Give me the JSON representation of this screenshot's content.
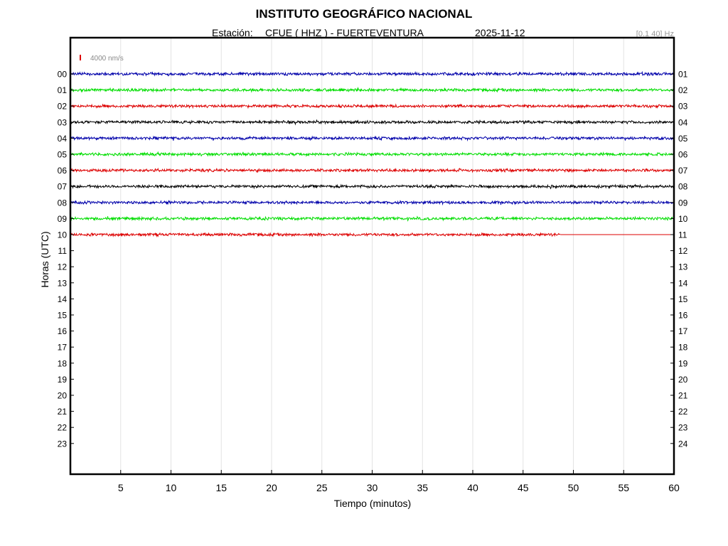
{
  "header": {
    "title": "INSTITUTO GEOGRÁFICO NACIONAL",
    "station_label": "Estación:",
    "station": "CFUE ( HHZ ) - FUERTEVENTURA",
    "date": "2025-11-12",
    "filter": "[0.1 40] Hz"
  },
  "chart_data": {
    "type": "line",
    "title": "INSTITUTO GEOGRÁFICO NACIONAL",
    "xlabel": "Tiempo (minutos)",
    "ylabel": "Horas (UTC)",
    "xlim": [
      0,
      60
    ],
    "x_ticks": [
      "5",
      "10",
      "15",
      "20",
      "25",
      "30",
      "35",
      "40",
      "45",
      "50",
      "55",
      "60"
    ],
    "left_ticks": [
      "00",
      "01",
      "02",
      "03",
      "04",
      "05",
      "06",
      "07",
      "08",
      "09",
      "10",
      "11",
      "12",
      "13",
      "14",
      "15",
      "16",
      "17",
      "18",
      "19",
      "20",
      "21",
      "22",
      "23"
    ],
    "right_ticks": [
      "01",
      "02",
      "03",
      "04",
      "05",
      "06",
      "07",
      "08",
      "09",
      "10",
      "11",
      "12",
      "13",
      "14",
      "15",
      "16",
      "17",
      "18",
      "19",
      "20",
      "21",
      "22",
      "23",
      "24"
    ],
    "scale_label": "4000 nm/s",
    "grid": "vertical",
    "trace_colors": [
      "#0000aa",
      "#00dd00",
      "#dd0000",
      "#000000"
    ],
    "traces": [
      {
        "hour": "00",
        "color": "#0000aa",
        "end_minute": 60
      },
      {
        "hour": "01",
        "color": "#00dd00",
        "end_minute": 60
      },
      {
        "hour": "02",
        "color": "#dd0000",
        "end_minute": 60
      },
      {
        "hour": "03",
        "color": "#000000",
        "end_minute": 60
      },
      {
        "hour": "04",
        "color": "#0000aa",
        "end_minute": 60
      },
      {
        "hour": "05",
        "color": "#00dd00",
        "end_minute": 60
      },
      {
        "hour": "06",
        "color": "#dd0000",
        "end_minute": 60
      },
      {
        "hour": "07",
        "color": "#000000",
        "end_minute": 60
      },
      {
        "hour": "08",
        "color": "#0000aa",
        "end_minute": 60
      },
      {
        "hour": "09",
        "color": "#00dd00",
        "end_minute": 60
      },
      {
        "hour": "10",
        "color": "#dd0000",
        "end_minute": 48.7
      }
    ]
  }
}
